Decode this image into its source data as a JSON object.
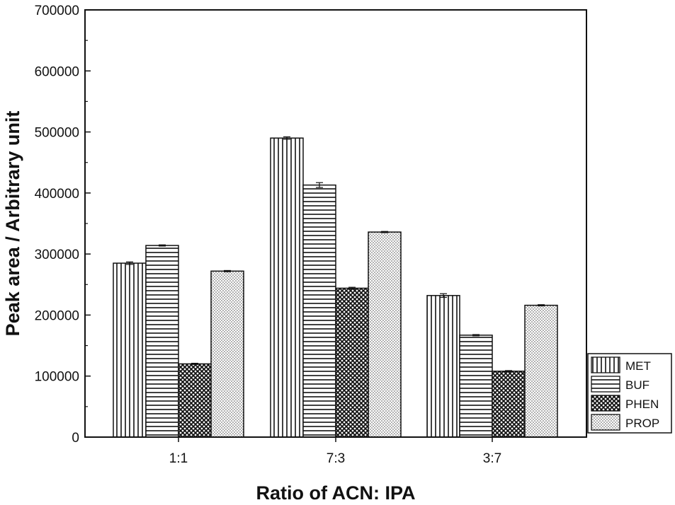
{
  "chart_data": {
    "type": "bar",
    "title": "",
    "xlabel": "Ratio of ACN: IPA",
    "ylabel": "Peak area / Arbitrary unit",
    "categories": [
      "1:1",
      "7:3",
      "3:7"
    ],
    "ylim": [
      0,
      700000
    ],
    "yticks": [
      "0",
      "100000",
      "200000",
      "300000",
      "400000",
      "500000",
      "600000",
      "700000"
    ],
    "grid": false,
    "legend_position": "bottom-right",
    "series": [
      {
        "name": "MET",
        "pattern": "vertical-lines",
        "values": [
          285000,
          490000,
          232000
        ],
        "errors": [
          2000,
          2000,
          3000
        ]
      },
      {
        "name": "BUF",
        "pattern": "horizontal-lines",
        "values": [
          314000,
          413000,
          167000
        ],
        "errors": [
          1000,
          4000,
          1000
        ]
      },
      {
        "name": "PHEN",
        "pattern": "crosshatch",
        "values": [
          120000,
          244000,
          108000
        ],
        "errors": [
          1000,
          1500,
          1000
        ]
      },
      {
        "name": "PROP",
        "pattern": "dots",
        "values": [
          272000,
          336000,
          216000
        ],
        "errors": [
          1000,
          1000,
          1000
        ]
      }
    ]
  }
}
